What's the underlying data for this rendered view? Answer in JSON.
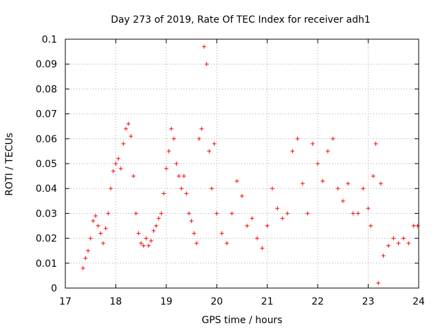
{
  "chart_data": {
    "type": "scatter",
    "title": "Day 273 of 2019, Rate Of TEC Index for receiver adh1",
    "xlabel": "GPS time / hours",
    "ylabel": "ROTI / TECUs",
    "xlim": [
      17,
      24
    ],
    "ylim": [
      0,
      0.1
    ],
    "xticks": [
      "17",
      "18",
      "19",
      "20",
      "21",
      "22",
      "23",
      "24"
    ],
    "yticks": [
      "0",
      "0.01",
      "0.02",
      "0.03",
      "0.04",
      "0.05",
      "0.06",
      "0.07",
      "0.08",
      "0.09",
      "0.1"
    ],
    "grid": true,
    "marker": "+",
    "color": "#ff0000",
    "series": [
      {
        "x": [
          17.35,
          17.4,
          17.45,
          17.5,
          17.55,
          17.6,
          17.65,
          17.7,
          17.75,
          17.8,
          17.85,
          17.9,
          17.95,
          18.0,
          18.05,
          18.1,
          18.15,
          18.2,
          18.25,
          18.3,
          18.35,
          18.4,
          18.45,
          18.5,
          18.55,
          18.6,
          18.65,
          18.7,
          18.75,
          18.8,
          18.85,
          18.9,
          18.95,
          19.0,
          19.05,
          19.1,
          19.15,
          19.2,
          19.25,
          19.3,
          19.35,
          19.4,
          19.45,
          19.5,
          19.55,
          19.6,
          19.65,
          19.7,
          19.75,
          19.8,
          19.85,
          19.9,
          19.95,
          20.0,
          20.1,
          20.2,
          20.3,
          20.4,
          20.5,
          20.6,
          20.7,
          20.8,
          20.9,
          21.0,
          21.1,
          21.2,
          21.3,
          21.4,
          21.5,
          21.6,
          21.7,
          21.8,
          21.9,
          22.0,
          22.1,
          22.2,
          22.3,
          22.4,
          22.5,
          22.6,
          22.7,
          22.8,
          22.9,
          23.0,
          23.05,
          23.1,
          23.15,
          23.2,
          23.25,
          23.3,
          23.4,
          23.5,
          23.6,
          23.7,
          23.8,
          23.9,
          23.98
        ],
        "y": [
          0.008,
          0.012,
          0.015,
          0.02,
          0.027,
          0.029,
          0.025,
          0.022,
          0.018,
          0.024,
          0.03,
          0.04,
          0.047,
          0.05,
          0.052,
          0.048,
          0.058,
          0.064,
          0.066,
          0.061,
          0.045,
          0.03,
          0.022,
          0.018,
          0.017,
          0.02,
          0.017,
          0.019,
          0.023,
          0.025,
          0.028,
          0.03,
          0.038,
          0.048,
          0.055,
          0.064,
          0.06,
          0.05,
          0.045,
          0.04,
          0.045,
          0.038,
          0.03,
          0.027,
          0.022,
          0.018,
          0.06,
          0.064,
          0.097,
          0.09,
          0.055,
          0.04,
          0.058,
          0.03,
          0.022,
          0.018,
          0.03,
          0.043,
          0.037,
          0.025,
          0.028,
          0.02,
          0.016,
          0.025,
          0.04,
          0.032,
          0.028,
          0.03,
          0.055,
          0.06,
          0.042,
          0.03,
          0.058,
          0.05,
          0.043,
          0.055,
          0.06,
          0.04,
          0.035,
          0.042,
          0.03,
          0.03,
          0.04,
          0.032,
          0.025,
          0.045,
          0.058,
          0.002,
          0.042,
          0.013,
          0.017,
          0.02,
          0.018,
          0.02,
          0.018,
          0.025,
          0.025
        ]
      }
    ]
  }
}
